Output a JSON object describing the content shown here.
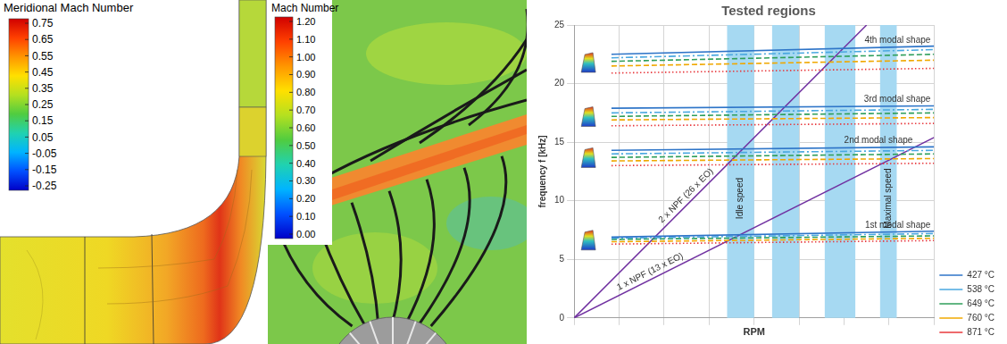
{
  "contour_panels": [
    {
      "title": "Meridional Mach Number",
      "colorbar_ticks": [
        0.75,
        0.65,
        0.55,
        0.45,
        0.35,
        0.25,
        0.15,
        0.05,
        -0.05,
        -0.15,
        -0.25
      ]
    },
    {
      "title": "Mach Number",
      "colorbar_ticks": [
        {
          "value": 1.2,
          "label": "1.20"
        },
        {
          "value": 1.1,
          "label": "1.10"
        },
        {
          "value": 1,
          "label": "1.00"
        },
        {
          "value": 0.9,
          "label": "0.90"
        },
        {
          "value": 0.8,
          "label": "0.80"
        },
        {
          "value": 0.7,
          "label": "0.70"
        },
        {
          "value": 0.6,
          "label": "0.60"
        },
        {
          "value": 0.5,
          "label": "0.50"
        },
        {
          "value": 0.4,
          "label": "0.40"
        },
        {
          "value": 0.3,
          "label": "0.30"
        },
        {
          "value": 0.2,
          "label": "0.20"
        },
        {
          "value": 0.1,
          "label": "0.10"
        },
        {
          "value": 0,
          "label": "0.00"
        }
      ]
    }
  ],
  "chart_data": {
    "type": "line",
    "title": "Tested regions",
    "x_label": "RPM",
    "y_label": "frequency f [kHz]",
    "xlim": [
      0,
      8
    ],
    "xticks": [
      0,
      1,
      2,
      3,
      4,
      5,
      6,
      7,
      8
    ],
    "ylim": [
      0,
      25
    ],
    "yticks": [
      0,
      5,
      10,
      15,
      20,
      25
    ],
    "grid": true,
    "tick_labels": "y",
    "legend": "lower right",
    "x": [
      0.83,
      8
    ],
    "modes": [
      "1st modal shape",
      "2nd modal shape",
      "3rd modal shape",
      "4th modal shape"
    ],
    "series": [
      {
        "name": "427 °C",
        "color": "#2e75c8",
        "line_style": "solid",
        "values": [
          [
            6.9,
            7.4
          ],
          [
            14.3,
            14.6
          ],
          [
            17.9,
            18.1
          ],
          [
            22.5,
            23.2
          ]
        ]
      },
      {
        "name": "538 °C",
        "color": "#4aa8e0",
        "line_style": "dashdot",
        "values": [
          [
            6.8,
            7.2
          ],
          [
            14.0,
            14.3
          ],
          [
            17.5,
            17.8
          ],
          [
            22.2,
            22.9
          ]
        ]
      },
      {
        "name": "649 °C",
        "color": "#2e9e5a",
        "line_style": "dashed",
        "values": [
          [
            6.7,
            7.0
          ],
          [
            13.7,
            14.0
          ],
          [
            17.2,
            17.5
          ],
          [
            21.9,
            22.5
          ]
        ]
      },
      {
        "name": "760 °C",
        "color": "#f0a800",
        "line_style": "dashed",
        "values": [
          [
            6.5,
            6.8
          ],
          [
            13.4,
            13.6
          ],
          [
            16.9,
            17.1
          ],
          [
            21.5,
            22.0
          ]
        ]
      },
      {
        "name": "871 °C",
        "color": "#e8383d",
        "line_style": "dotted",
        "values": [
          [
            6.3,
            6.6
          ],
          [
            13.0,
            13.2
          ],
          [
            16.4,
            16.6
          ],
          [
            20.9,
            21.3
          ]
        ]
      }
    ],
    "excitations": [
      {
        "name": "1 x NPF (13 x EO)",
        "color": "#7030a0",
        "x": [
          0,
          8
        ],
        "values": [
          0,
          15.4
        ]
      },
      {
        "name": "2 x NPF (26 x EO)",
        "color": "#7030a0",
        "x": [
          0,
          6.5
        ],
        "values": [
          0,
          25
        ]
      }
    ],
    "regions": [
      {
        "range": [
          3.4,
          4.0
        ],
        "label": "Idle speed",
        "color": "#a6d9f2"
      },
      {
        "range": [
          4.4,
          5.0
        ],
        "color": "#a6d9f2"
      },
      {
        "range": [
          5.57,
          6.25
        ],
        "color": "#a6d9f2"
      },
      {
        "range": [
          6.8,
          7.17
        ],
        "label": "Maximal speed",
        "color": "#a6d9f2"
      }
    ]
  }
}
